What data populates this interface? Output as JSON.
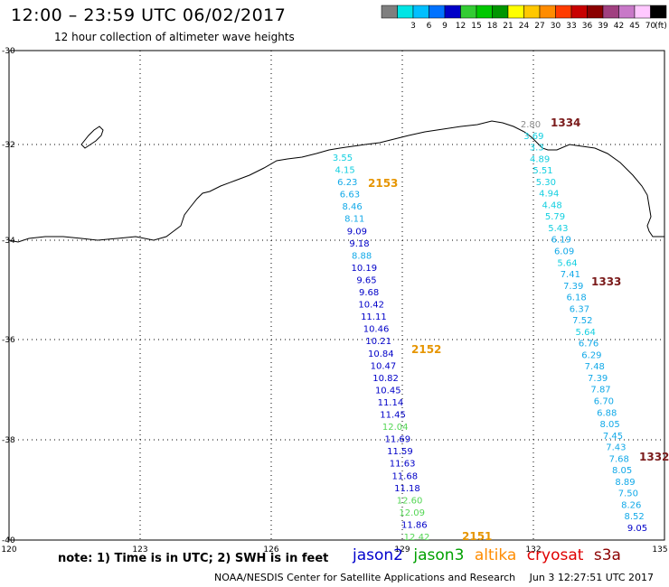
{
  "header": {
    "title": "12:00 – 23:59 UTC 06/02/2017",
    "subtitle": "12 hour collection of altimeter wave heights"
  },
  "colorbar": {
    "unit": "(ft)",
    "bins": [
      {
        "label": "",
        "color": "#7f7f7f"
      },
      {
        "label": "3",
        "color": "#00e5e5"
      },
      {
        "label": "6",
        "color": "#00bfff"
      },
      {
        "label": "9",
        "color": "#0072ff"
      },
      {
        "label": "12",
        "color": "#0000c8"
      },
      {
        "label": "15",
        "color": "#33cc33"
      },
      {
        "label": "18",
        "color": "#00c800"
      },
      {
        "label": "21",
        "color": "#009600"
      },
      {
        "label": "24",
        "color": "#ffff00"
      },
      {
        "label": "27",
        "color": "#ffc800"
      },
      {
        "label": "30",
        "color": "#ff8c00"
      },
      {
        "label": "33",
        "color": "#ff3c00"
      },
      {
        "label": "36",
        "color": "#c80000"
      },
      {
        "label": "39",
        "color": "#8b0000"
      },
      {
        "label": "42",
        "color": "#a04080"
      },
      {
        "label": "45",
        "color": "#c878c8"
      },
      {
        "label": "70",
        "color": "#ffc8ff"
      },
      {
        "label": "",
        "color": "#000000"
      }
    ]
  },
  "map": {
    "lon_range": [
      120,
      135
    ],
    "lat_range": [
      -40,
      -30
    ],
    "lon_ticks": [
      "120",
      "123",
      "126",
      "129",
      "132",
      "135"
    ],
    "lat_ticks": [
      "-30",
      "-32",
      "-34",
      "-36",
      "-38",
      "-40"
    ],
    "tracks": [
      {
        "satellite": "altika",
        "time_labels": [
          {
            "text": "2153",
            "color": "#e69500"
          },
          {
            "text": "2152",
            "color": "#e69500"
          },
          {
            "text": "2151",
            "color": "#e69500"
          }
        ],
        "values": [
          "3.55",
          "4.15",
          "6.23",
          "6.63",
          "8.46",
          "8.11",
          "9.09",
          "9.18",
          "8.88",
          "10.19",
          "9.65",
          "9.68",
          "10.42",
          "11.11",
          "10.46",
          "10.21",
          "10.84",
          "10.47",
          "10.82",
          "10.45",
          "11.14",
          "11.45",
          "12.04",
          "11.69",
          "11.59",
          "11.63",
          "11.68",
          "11.18",
          "12.60",
          "12.09",
          "11.86",
          "12.42"
        ]
      },
      {
        "satellite": "s3a",
        "time_labels": [
          {
            "text": "1334",
            "color": "#7a1a1a"
          },
          {
            "text": "1333",
            "color": "#7a1a1a"
          },
          {
            "text": "1332",
            "color": "#7a1a1a"
          }
        ],
        "values": [
          "2.80",
          "3.69",
          "3.3",
          "4.89",
          "5.51",
          "5.30",
          "4.94",
          "4.48",
          "5.79",
          "5.43",
          "6.19",
          "6.09",
          "5.64",
          "7.41",
          "7.39",
          "6.18",
          "6.37",
          "7.52",
          "5.64",
          "6.76",
          "6.29",
          "7.48",
          "7.39",
          "7.87",
          "6.70",
          "6.88",
          "8.05",
          "7.45",
          "7.43",
          "7.68",
          "8.05",
          "8.89",
          "7.50",
          "8.26",
          "8.52",
          "9.05"
        ]
      }
    ]
  },
  "note": "note: 1) Time is in UTC; 2) SWH is in feet",
  "satellites": [
    {
      "name": "jason2",
      "color": "#0000cc"
    },
    {
      "name": "jason3",
      "color": "#00a000"
    },
    {
      "name": "altika",
      "color": "#ff8c00"
    },
    {
      "name": "cryosat",
      "color": "#e00000"
    },
    {
      "name": "s3a",
      "color": "#8b0000"
    }
  ],
  "footer": {
    "credit": "NOAA/NESDIS Center for Satellite Applications and Research",
    "timestamp": "Jun  3 12:27:51 UTC 2017"
  }
}
